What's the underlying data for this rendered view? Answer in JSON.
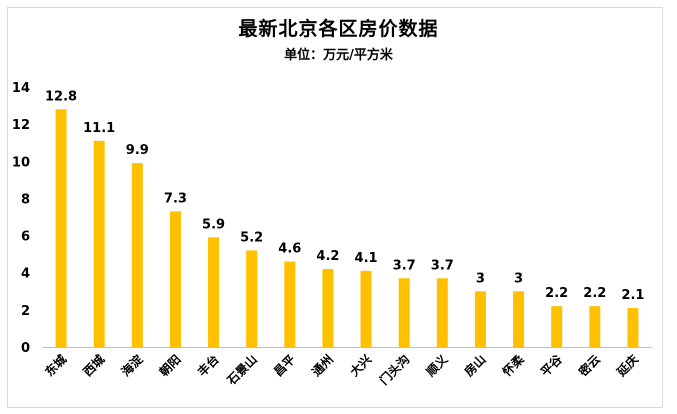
{
  "chart_data": {
    "type": "bar",
    "title": "最新北京各区房价数据",
    "subtitle": "单位：万元/平方米",
    "categories": [
      "东城",
      "西城",
      "海淀",
      "朝阳",
      "丰台",
      "石景山",
      "昌平",
      "通州",
      "大兴",
      "门头沟",
      "顺义",
      "房山",
      "怀柔",
      "平谷",
      "密云",
      "延庆"
    ],
    "values": [
      12.8,
      11.1,
      9.9,
      7.3,
      5.9,
      5.2,
      4.6,
      4.2,
      4.1,
      3.7,
      3.7,
      3,
      3,
      2.2,
      2.2,
      2.1
    ],
    "value_labels": [
      "12.8",
      "11.1",
      "9.9",
      "7.3",
      "5.9",
      "5.2",
      "4.6",
      "4.2",
      "4.1",
      "3.7",
      "3.7",
      "3",
      "3",
      "2.2",
      "2.2",
      "2.1"
    ],
    "ylim": [
      0,
      14
    ],
    "yticks": [
      0,
      2,
      4,
      6,
      8,
      10,
      12,
      14
    ],
    "grid": false,
    "legend": "none",
    "bar_color": "#FFC000"
  }
}
